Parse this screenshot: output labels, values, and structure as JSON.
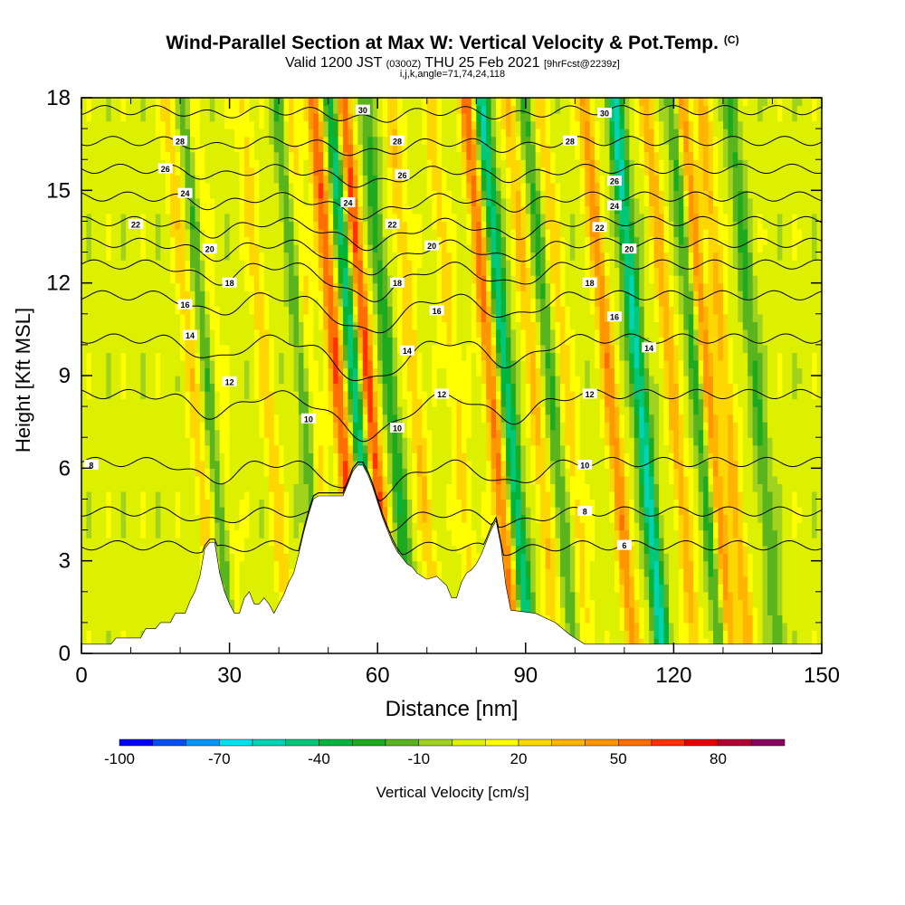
{
  "header": {
    "title": "Wind-Parallel Section at Max W: Vertical Velocity & Pot.Temp.",
    "title_mark": "(C)",
    "valid_prefix": "Valid 1200 JST",
    "valid_z": "(0300Z)",
    "valid_date": "THU 25 Feb 2021",
    "forecast": "[9hrFcst@2239z]",
    "location": "i,j,k,angle=71,74,24,118"
  },
  "chart_data": {
    "type": "heatmap",
    "xlabel": "Distance [nm]",
    "ylabel": "Height [Kft MSL]",
    "xlim": [
      0,
      150
    ],
    "ylim": [
      0,
      18
    ],
    "xticks": [
      "0",
      "30",
      "60",
      "90",
      "120",
      "150"
    ],
    "yticks": [
      "0",
      "3",
      "6",
      "9",
      "12",
      "15",
      "18"
    ],
    "colorbar": {
      "label": "Vertical Velocity [cm/s]",
      "tick_labels": [
        "-100",
        "-70",
        "-40",
        "-10",
        "20",
        "50",
        "80"
      ],
      "tick_values": [
        -100,
        -70,
        -40,
        -10,
        20,
        50,
        80
      ],
      "bins": [
        -100,
        -90,
        -80,
        -70,
        -60,
        -50,
        -40,
        -30,
        -20,
        -10,
        0,
        10,
        20,
        30,
        40,
        50,
        60,
        70,
        80,
        90,
        100
      ],
      "colors": [
        "#0000ff",
        "#0050f5",
        "#0096ff",
        "#00e0f0",
        "#00d2b4",
        "#00c878",
        "#00b43c",
        "#1eaa1e",
        "#5ab41e",
        "#a0d21e",
        "#dcf000",
        "#ffff00",
        "#ffd700",
        "#ffb400",
        "#ff9600",
        "#ff6e00",
        "#ff3200",
        "#e60000",
        "#b40032",
        "#8c0064",
        "#64008c"
      ]
    },
    "updraft_bands": [
      {
        "x": 24,
        "w": 20
      },
      {
        "x": 28.5,
        "w": 25
      },
      {
        "x": 39,
        "w": 20
      },
      {
        "x": 48,
        "w": 25
      },
      {
        "x": 53.5,
        "w": 55
      },
      {
        "x": 59.5,
        "w": 60
      },
      {
        "x": 69,
        "w": 25
      },
      {
        "x": 77,
        "w": 20
      },
      {
        "x": 84.5,
        "w": 50
      },
      {
        "x": 93,
        "w": 25
      },
      {
        "x": 99.5,
        "w": 20
      },
      {
        "x": 108.5,
        "w": 40
      },
      {
        "x": 121,
        "w": 30
      },
      {
        "x": 132,
        "w": 30
      },
      {
        "x": 128,
        "w": 50
      }
    ],
    "downdraft_bands": [
      {
        "x": 27.5,
        "w": -35
      },
      {
        "x": 46.5,
        "w": -30
      },
      {
        "x": 57,
        "w": -55
      },
      {
        "x": 64,
        "w": -30
      },
      {
        "x": 87.5,
        "w": -55
      },
      {
        "x": 96.5,
        "w": -25
      },
      {
        "x": 114.5,
        "w": -60
      },
      {
        "x": 126.5,
        "w": -40
      },
      {
        "x": 138,
        "w": -25
      }
    ],
    "terrain": [
      [
        0,
        0.3
      ],
      [
        6,
        0.3
      ],
      [
        7,
        0.5
      ],
      [
        12,
        0.5
      ],
      [
        13,
        0.8
      ],
      [
        15,
        0.8
      ],
      [
        16,
        1.0
      ],
      [
        18,
        1.0
      ],
      [
        19,
        1.3
      ],
      [
        21,
        1.3
      ],
      [
        22,
        1.7
      ],
      [
        23,
        2.0
      ],
      [
        24,
        2.5
      ],
      [
        25,
        3.4
      ],
      [
        26,
        3.6
      ],
      [
        27,
        3.6
      ],
      [
        28,
        2.6
      ],
      [
        29,
        2.0
      ],
      [
        30,
        1.6
      ],
      [
        31,
        1.3
      ],
      [
        32,
        1.3
      ],
      [
        33,
        1.8
      ],
      [
        34,
        2.0
      ],
      [
        35,
        1.6
      ],
      [
        36,
        1.6
      ],
      [
        37,
        1.8
      ],
      [
        38,
        1.6
      ],
      [
        39,
        1.3
      ],
      [
        40,
        1.6
      ],
      [
        41,
        1.9
      ],
      [
        42,
        2.3
      ],
      [
        43,
        2.6
      ],
      [
        44,
        3.2
      ],
      [
        45,
        3.9
      ],
      [
        46,
        4.5
      ],
      [
        47,
        5.0
      ],
      [
        48,
        5.1
      ],
      [
        53,
        5.1
      ],
      [
        54,
        5.5
      ],
      [
        55,
        5.9
      ],
      [
        56,
        6.1
      ],
      [
        57,
        6.1
      ],
      [
        58,
        5.8
      ],
      [
        59,
        5.4
      ],
      [
        60,
        4.9
      ],
      [
        61,
        4.4
      ],
      [
        62,
        4.0
      ],
      [
        63,
        3.6
      ],
      [
        64,
        3.3
      ],
      [
        65,
        3.1
      ],
      [
        66,
        2.9
      ],
      [
        67,
        2.8
      ],
      [
        68,
        2.6
      ],
      [
        70,
        2.4
      ],
      [
        72,
        2.5
      ],
      [
        74,
        2.2
      ],
      [
        75,
        1.8
      ],
      [
        76,
        1.8
      ],
      [
        77,
        2.3
      ],
      [
        78,
        2.6
      ],
      [
        79,
        2.7
      ],
      [
        80,
        2.9
      ],
      [
        81,
        3.2
      ],
      [
        82,
        3.6
      ],
      [
        83,
        4.0
      ],
      [
        84,
        4.3
      ],
      [
        85,
        3.5
      ],
      [
        86,
        2.2
      ],
      [
        87,
        1.4
      ],
      [
        92,
        1.3
      ],
      [
        96,
        1.0
      ],
      [
        99,
        0.6
      ],
      [
        102,
        0.3
      ],
      [
        150,
        0.3
      ]
    ],
    "theta_contours": [
      {
        "label": "6",
        "base": 3.5,
        "dip": 0.3
      },
      {
        "label": "8",
        "base": 4.6,
        "dip": 0.7
      },
      {
        "label": "10",
        "base": 6.2,
        "dip": 1.2
      },
      {
        "label": "12",
        "base": 8.4,
        "dip": 1.4
      },
      {
        "label": "14",
        "base": 10.2,
        "dip": 1.4
      },
      {
        "label": "16",
        "base": 11.6,
        "dip": 1.2
      },
      {
        "label": "18",
        "base": 12.6,
        "dip": 1.1
      },
      {
        "label": "20",
        "base": 13.3,
        "dip": 0.9
      },
      {
        "label": "22",
        "base": 14.0,
        "dip": 0.8
      },
      {
        "label": "24",
        "base": 14.8,
        "dip": 0.6
      },
      {
        "label": "26",
        "base": 15.7,
        "dip": 0.5
      },
      {
        "label": "28",
        "base": 16.6,
        "dip": 0.4
      },
      {
        "label": "30",
        "base": 17.6,
        "dip": 0.3
      }
    ],
    "contour_labels": [
      {
        "text": "30",
        "x": 57,
        "y": 17.6
      },
      {
        "text": "30",
        "x": 106,
        "y": 17.5
      },
      {
        "text": "28",
        "x": 20,
        "y": 16.6
      },
      {
        "text": "28",
        "x": 64,
        "y": 16.6
      },
      {
        "text": "28",
        "x": 99,
        "y": 16.6
      },
      {
        "text": "26",
        "x": 17,
        "y": 15.7
      },
      {
        "text": "26",
        "x": 65,
        "y": 15.5
      },
      {
        "text": "26",
        "x": 108,
        "y": 15.3
      },
      {
        "text": "24",
        "x": 21,
        "y": 14.9
      },
      {
        "text": "24",
        "x": 54,
        "y": 14.6
      },
      {
        "text": "24",
        "x": 108,
        "y": 14.5
      },
      {
        "text": "22",
        "x": 11,
        "y": 13.9
      },
      {
        "text": "22",
        "x": 63,
        "y": 13.9
      },
      {
        "text": "22",
        "x": 105,
        "y": 13.8
      },
      {
        "text": "20",
        "x": 26,
        "y": 13.1
      },
      {
        "text": "20",
        "x": 71,
        "y": 13.2
      },
      {
        "text": "20",
        "x": 111,
        "y": 13.1
      },
      {
        "text": "18",
        "x": 30,
        "y": 12.0
      },
      {
        "text": "18",
        "x": 64,
        "y": 12.0
      },
      {
        "text": "18",
        "x": 103,
        "y": 12.0
      },
      {
        "text": "16",
        "x": 21,
        "y": 11.3
      },
      {
        "text": "16",
        "x": 72,
        "y": 11.1
      },
      {
        "text": "16",
        "x": 108,
        "y": 10.9
      },
      {
        "text": "14",
        "x": 22,
        "y": 10.3
      },
      {
        "text": "14",
        "x": 66,
        "y": 9.8
      },
      {
        "text": "14",
        "x": 115,
        "y": 9.9
      },
      {
        "text": "12",
        "x": 30,
        "y": 8.8
      },
      {
        "text": "12",
        "x": 73,
        "y": 8.4
      },
      {
        "text": "12",
        "x": 103,
        "y": 8.4
      },
      {
        "text": "10",
        "x": 46,
        "y": 7.6
      },
      {
        "text": "10",
        "x": 64,
        "y": 7.3
      },
      {
        "text": "10",
        "x": 102,
        "y": 6.1
      },
      {
        "text": "8",
        "x": 2,
        "y": 6.1
      },
      {
        "text": "8",
        "x": 102,
        "y": 4.6
      },
      {
        "text": "6",
        "x": 110,
        "y": 3.5
      }
    ]
  }
}
